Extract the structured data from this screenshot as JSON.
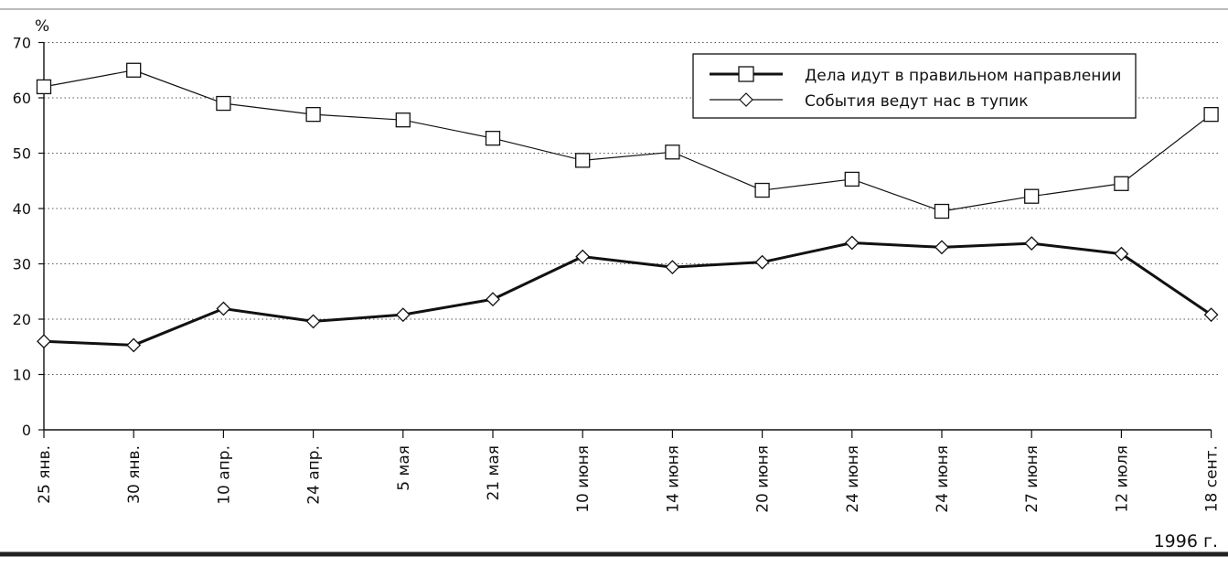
{
  "chart_data": {
    "type": "line",
    "y_unit": "%",
    "year_note": "1996 г.",
    "categories": [
      "25 янв.",
      "30 янв.",
      "10 апр.",
      "24 апр.",
      "5 мая",
      "21 мая",
      "10 июня",
      "14 июня",
      "20 июня",
      "24 июня",
      "24 июня",
      "27 июня",
      "12 июля",
      "18 сент."
    ],
    "ylim": [
      0,
      70
    ],
    "yticks": [
      0,
      10,
      20,
      30,
      40,
      50,
      60,
      70
    ],
    "grid": true,
    "legend_position": "top-right",
    "series": [
      {
        "name": "Дела идут в правильном направлении",
        "marker": "square",
        "line_weight": "thin",
        "values": [
          62,
          65,
          59,
          57,
          56,
          52.7,
          48.7,
          50.2,
          43.3,
          45.3,
          39.5,
          42.2,
          44.5,
          57
        ]
      },
      {
        "name": "События ведут нас в тупик",
        "marker": "diamond",
        "line_weight": "thick",
        "values": [
          16,
          15.3,
          21.9,
          19.6,
          20.8,
          23.6,
          31.3,
          29.4,
          30.3,
          33.8,
          33,
          33.7,
          31.8,
          20.8
        ]
      }
    ]
  }
}
